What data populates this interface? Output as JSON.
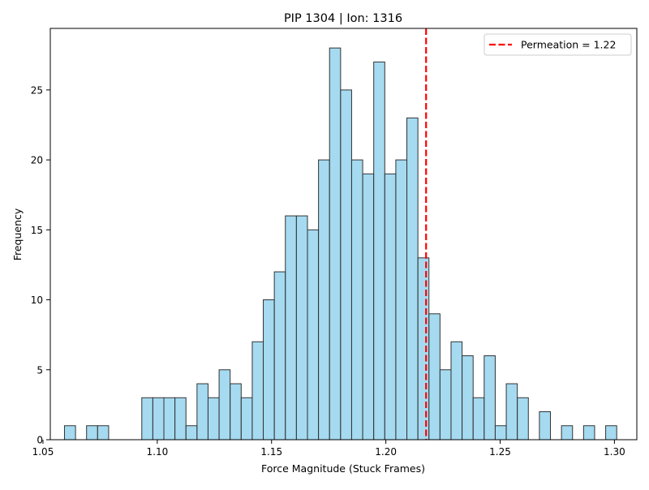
{
  "chart_data": {
    "type": "bar",
    "title": "PIP 1304 | Ion: 1316",
    "xlabel": "Force Magnitude (Stuck Frames)",
    "ylabel": "Frequency",
    "xlim": [
      1.0532,
      1.3098
    ],
    "ylim": [
      0,
      29.4
    ],
    "xticks": [
      1.05,
      1.1,
      1.15,
      1.2,
      1.25,
      1.3
    ],
    "xtick_labels": [
      "1.05",
      "1.10",
      "1.15",
      "1.20",
      "1.25",
      "1.30"
    ],
    "yticks": [
      0,
      5,
      10,
      15,
      20,
      25
    ],
    "ytick_labels": [
      "0",
      "5",
      "10",
      "15",
      "20",
      "25"
    ],
    "bin_start": 1.0594,
    "bin_width": 0.004832,
    "values": [
      1,
      0,
      1,
      1,
      0,
      0,
      0,
      3,
      3,
      3,
      3,
      1,
      4,
      3,
      5,
      4,
      3,
      7,
      10,
      12,
      16,
      16,
      15,
      20,
      28,
      25,
      20,
      19,
      27,
      19,
      20,
      23,
      13,
      9,
      5,
      7,
      6,
      3,
      6,
      1,
      4,
      3,
      0,
      2,
      0,
      1,
      0,
      1,
      0,
      1
    ],
    "bar_fill": "#87ceeb",
    "bar_edge": "#333333",
    "reference_line": {
      "x": 1.2176,
      "color": "#ff0000",
      "label": "Permeation = 1.22"
    },
    "grid": false,
    "legend_position": "top-right"
  }
}
